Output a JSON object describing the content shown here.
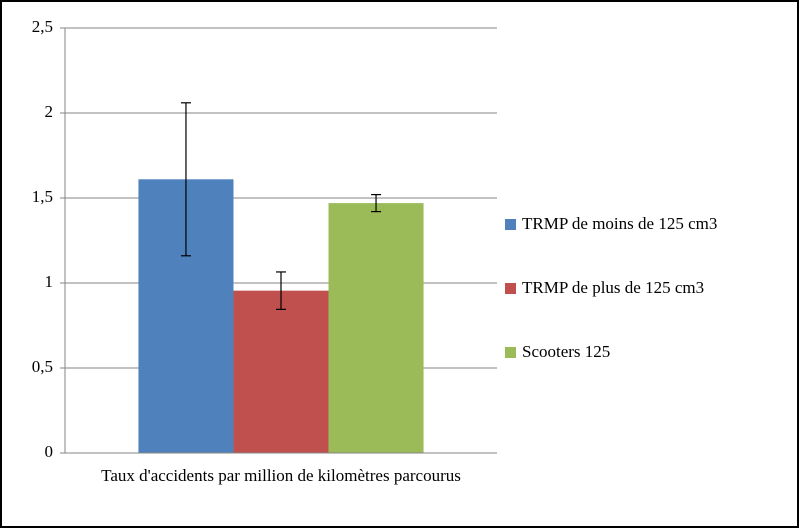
{
  "chart_data": {
    "type": "bar",
    "categories": [
      "Taux d'accidents par million de kilomètres parcourus"
    ],
    "series": [
      {
        "name": "TRMP de moins de 125 cm3",
        "color": "#4f81bd",
        "values": [
          1.61
        ],
        "errors": [
          0.45
        ]
      },
      {
        "name": "TRMP de plus de 125 cm3",
        "color": "#c0504d",
        "values": [
          0.955
        ],
        "errors": [
          0.11
        ]
      },
      {
        "name": "Scooters 125",
        "color": "#9bbb59",
        "values": [
          1.47
        ],
        "errors": [
          0.05
        ]
      }
    ],
    "ylim": [
      0,
      2.5
    ],
    "yticks": [
      0,
      {
        "value": 0.5,
        "label": "0,5"
      },
      1,
      {
        "value": 1.5,
        "label": "1,5"
      },
      2,
      {
        "value": 2.5,
        "label": "2,5"
      }
    ],
    "grid": true,
    "legend": "right"
  }
}
